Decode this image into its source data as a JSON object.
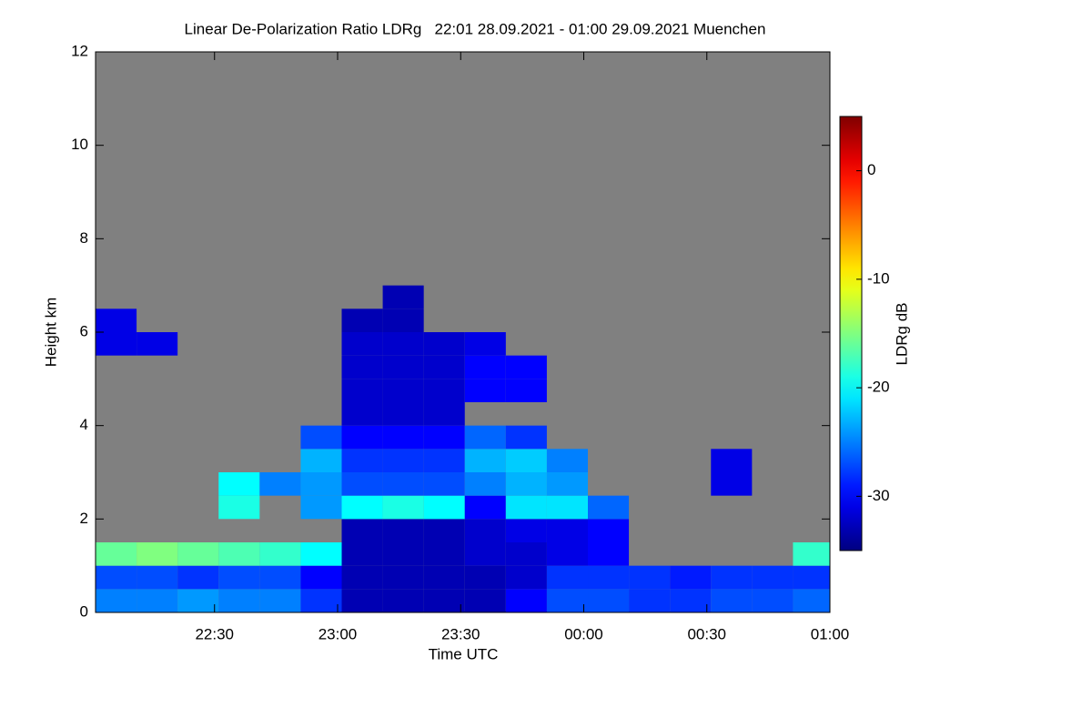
{
  "chart_data": {
    "type": "heatmap",
    "title": "Linear De-Polarization Ratio LDRg   22:01 28.09.2021 - 01:00 29.09.2021 Muenchen",
    "xlabel": "Time UTC",
    "ylabel": "Height km",
    "colorbar_label": "LDRg dB",
    "colormap": "jet",
    "background": "#808080",
    "xlim": [
      "22:01",
      "01:00"
    ],
    "xticks": [
      "22:30",
      "23:00",
      "23:30",
      "00:00",
      "00:30",
      "01:00"
    ],
    "ylim": [
      0,
      12
    ],
    "yticks": [
      0,
      2,
      4,
      6,
      8,
      10,
      12
    ],
    "clim": [
      -35,
      5
    ],
    "cticks": [
      -30,
      -20,
      -10,
      0
    ],
    "x": [
      "22:06",
      "22:16",
      "22:26",
      "22:36",
      "22:46",
      "22:56",
      "23:06",
      "23:16",
      "23:26",
      "23:36",
      "23:46",
      "23:56",
      "00:06",
      "00:16",
      "00:26",
      "00:36",
      "00:46",
      "00:56"
    ],
    "y": [
      0.25,
      0.75,
      1.25,
      1.75,
      2.25,
      2.75,
      3.25,
      3.75,
      4.25,
      4.75,
      5.25,
      5.75,
      6.25,
      6.75
    ],
    "z": [
      [
        -25,
        -25,
        -24,
        -25,
        -25,
        -28,
        -33,
        -33,
        -33,
        -33,
        -30,
        -27,
        -27,
        -28,
        -28,
        -27,
        -27,
        -26
      ],
      [
        -27,
        -27,
        -28,
        -27,
        -27,
        -30,
        -33,
        -33,
        -33,
        -33,
        -32,
        -28,
        -28,
        -28,
        -29,
        -28,
        -28,
        -28
      ],
      [
        -16,
        -15,
        -16,
        -17,
        -18,
        -20,
        -33,
        -33,
        -33,
        -32,
        -32,
        -31,
        -30,
        null,
        null,
        null,
        null,
        -18
      ],
      [
        null,
        null,
        null,
        null,
        null,
        null,
        -33,
        -33,
        -33,
        -32,
        -31,
        -31,
        -30,
        null,
        null,
        null,
        null,
        null
      ],
      [
        null,
        null,
        null,
        -19,
        null,
        -24,
        -20,
        -19,
        -20,
        -30,
        -21,
        -21,
        -26,
        null,
        null,
        null,
        null,
        null
      ],
      [
        null,
        null,
        null,
        -20,
        -25,
        -24,
        -27,
        -27,
        -27,
        -25,
        -23,
        -24,
        null,
        null,
        null,
        -31,
        null,
        null
      ],
      [
        null,
        null,
        null,
        null,
        null,
        -23,
        -28,
        -28,
        -28,
        -23,
        -22,
        -25,
        null,
        null,
        null,
        -31,
        null,
        null
      ],
      [
        null,
        null,
        null,
        null,
        null,
        -27,
        -30,
        -30,
        -30,
        -26,
        -28,
        null,
        null,
        null,
        null,
        null,
        null,
        null
      ],
      [
        null,
        null,
        null,
        null,
        null,
        null,
        -32,
        -32,
        -32,
        null,
        null,
        null,
        null,
        null,
        null,
        null,
        null,
        null
      ],
      [
        null,
        null,
        null,
        null,
        null,
        null,
        -32,
        -32,
        -32,
        -30,
        -30,
        null,
        null,
        null,
        null,
        null,
        null,
        null
      ],
      [
        null,
        null,
        null,
        null,
        null,
        null,
        -32,
        -32,
        -32,
        -30,
        -30,
        null,
        null,
        null,
        null,
        null,
        null,
        null
      ],
      [
        -31,
        -31,
        null,
        null,
        null,
        null,
        -32,
        -32,
        -32,
        -31,
        null,
        null,
        null,
        null,
        null,
        null,
        null,
        null
      ],
      [
        -31,
        null,
        null,
        null,
        null,
        null,
        -33,
        -33,
        null,
        null,
        null,
        null,
        null,
        null,
        null,
        null,
        null,
        null
      ],
      [
        null,
        null,
        null,
        null,
        null,
        null,
        null,
        -33,
        null,
        null,
        null,
        null,
        null,
        null,
        null,
        null,
        null,
        null
      ]
    ]
  }
}
